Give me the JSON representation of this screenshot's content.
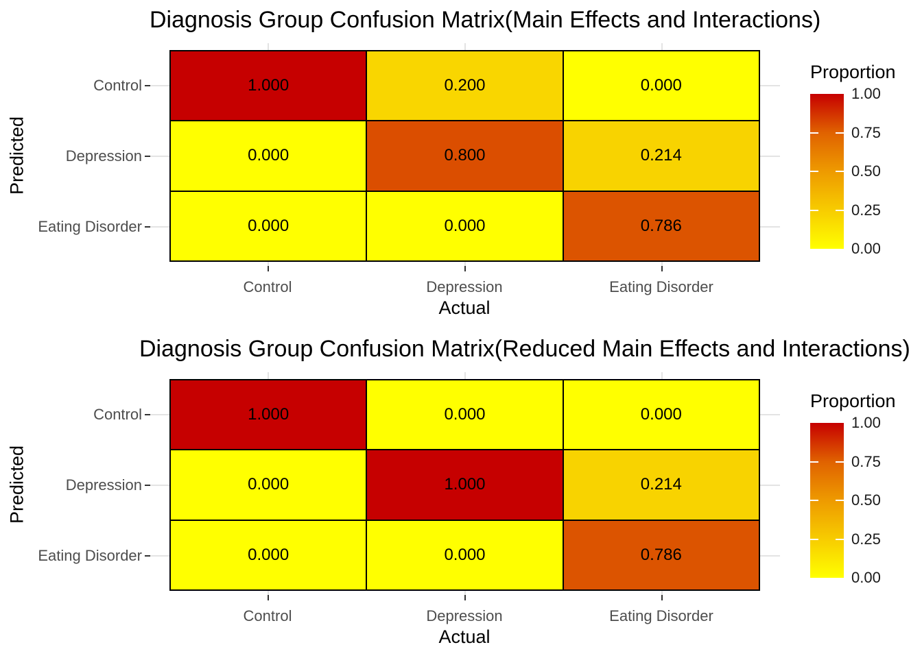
{
  "style": {
    "background": "#FFFFFF",
    "tile_border_color": "#000000",
    "gridline_color": "#E3E3E3",
    "axis_text_color": "#4D4D4D",
    "tick_mark_color": "#333333",
    "title_color": "#000000",
    "gradient_stops": [
      [
        0,
        "#FFFF00"
      ],
      [
        0.25,
        "#F7CC00"
      ],
      [
        0.5,
        "#EE9A00"
      ],
      [
        0.75,
        "#E06200"
      ],
      [
        1,
        "#C60000"
      ]
    ]
  },
  "chart_data": [
    {
      "type": "heatmap",
      "title": "Diagnosis Group Confusion Matrix(Main Effects and Interactions)",
      "xlabel": "Actual",
      "ylabel": "Predicted",
      "x_categories": [
        "Control",
        "Depression",
        "Eating Disorder"
      ],
      "y_categories": [
        "Control",
        "Depression",
        "Eating Disorder"
      ],
      "values": [
        [
          1.0,
          0.2,
          0.0
        ],
        [
          0.0,
          0.8,
          0.214
        ],
        [
          0.0,
          0.0,
          0.786
        ]
      ],
      "cell_labels": [
        [
          "1.000",
          "0.200",
          "0.000"
        ],
        [
          "0.000",
          "0.800",
          "0.214"
        ],
        [
          "0.000",
          "0.000",
          "0.786"
        ]
      ],
      "fill_range": [
        0,
        1
      ],
      "grid": "major-only",
      "legend": {
        "title": "Proportion",
        "position": "right",
        "tick_labels": [
          "1.00",
          "0.75",
          "0.50",
          "0.25",
          "0.00"
        ],
        "low_color": "#FFFF00",
        "high_color": "#C60000"
      }
    },
    {
      "type": "heatmap",
      "title": "Diagnosis Group Confusion Matrix(Reduced Main Effects and Interactions)",
      "xlabel": "Actual",
      "ylabel": "Predicted",
      "x_categories": [
        "Control",
        "Depression",
        "Eating Disorder"
      ],
      "y_categories": [
        "Control",
        "Depression",
        "Eating Disorder"
      ],
      "values": [
        [
          1.0,
          0.0,
          0.0
        ],
        [
          0.0,
          1.0,
          0.214
        ],
        [
          0.0,
          0.0,
          0.786
        ]
      ],
      "cell_labels": [
        [
          "1.000",
          "0.000",
          "0.000"
        ],
        [
          "0.000",
          "1.000",
          "0.214"
        ],
        [
          "0.000",
          "0.000",
          "0.786"
        ]
      ],
      "fill_range": [
        0,
        1
      ],
      "grid": "major-only",
      "legend": {
        "title": "Proportion",
        "position": "right",
        "tick_labels": [
          "1.00",
          "0.75",
          "0.50",
          "0.25",
          "0.00"
        ],
        "low_color": "#FFFF00",
        "high_color": "#C60000"
      }
    }
  ]
}
